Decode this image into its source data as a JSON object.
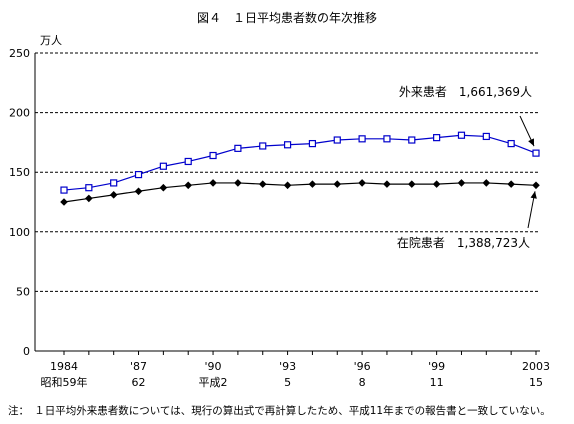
{
  "title": "図４　１日平均患者数の年次推移",
  "note": "注：　１日平均外来患者数については、現行の算出式で再計算したため、平成11年までの報告書と一致していない。",
  "chart_data": {
    "type": "line",
    "title": "図４　１日平均患者数の年次推移",
    "ylabel": "万人",
    "ylim": [
      0,
      250
    ],
    "yticks": [
      0,
      50,
      100,
      150,
      200,
      250
    ],
    "grid": true,
    "x": [
      1984,
      1985,
      1986,
      1987,
      1988,
      1989,
      1990,
      1991,
      1992,
      1993,
      1994,
      1995,
      1996,
      1997,
      1998,
      1999,
      2000,
      2001,
      2002,
      2003
    ],
    "xtick_labels": [
      {
        "x": 1984,
        "top": "1984",
        "bottom": "昭和59年"
      },
      {
        "x": 1987,
        "top": "'87",
        "bottom": "62"
      },
      {
        "x": 1990,
        "top": "'90",
        "bottom": "平成2"
      },
      {
        "x": 1993,
        "top": "'93",
        "bottom": "5"
      },
      {
        "x": 1996,
        "top": "'96",
        "bottom": "8"
      },
      {
        "x": 1999,
        "top": "'99",
        "bottom": "11"
      },
      {
        "x": 2003,
        "top": "2003",
        "bottom": "15"
      }
    ],
    "series": [
      {
        "name": "外来患者",
        "annotation": "外来患者　1,661,369人",
        "marker": "open-square",
        "color": "#0000cc",
        "values": [
          135,
          137,
          141,
          148,
          155,
          159,
          164,
          170,
          172,
          173,
          174,
          177,
          178,
          178,
          177,
          179,
          181,
          180,
          174,
          166
        ]
      },
      {
        "name": "在院患者",
        "annotation": "在院患者　1,388,723人",
        "marker": "filled-diamond",
        "color": "#000000",
        "values": [
          125,
          128,
          131,
          134,
          137,
          139,
          141,
          141,
          140,
          139,
          140,
          140,
          141,
          140,
          140,
          140,
          141,
          141,
          140,
          139
        ]
      }
    ]
  }
}
